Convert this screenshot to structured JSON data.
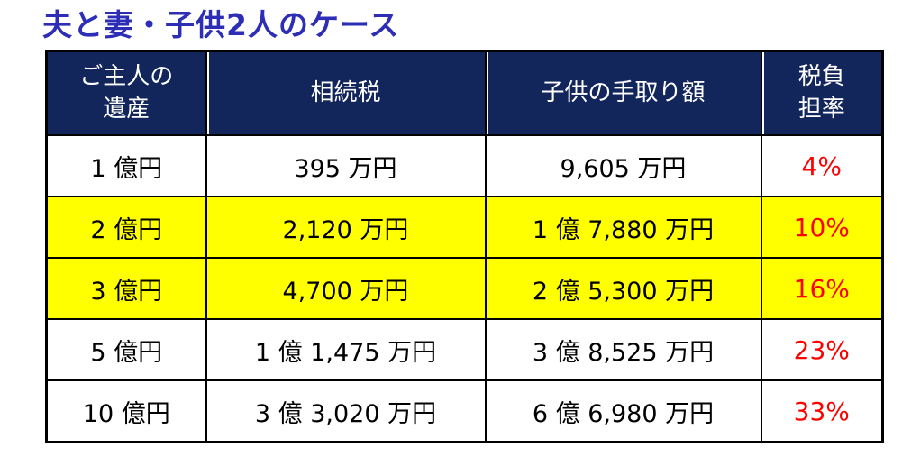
{
  "page": {
    "title": "夫と妻・子供2人のケース",
    "colors": {
      "title_blue": "#2d2db5",
      "header_navy": "#12265c",
      "highlight_yellow": "#ffff00",
      "rate_red": "#ff0000",
      "grid_black": "#000000"
    }
  },
  "table": {
    "headers": [
      {
        "id": "estate",
        "label": "ご主人の\n遺産"
      },
      {
        "id": "tax",
        "label": "相続税"
      },
      {
        "id": "net",
        "label": "子供の手取り額"
      },
      {
        "id": "rate",
        "label": "税負\n担率"
      }
    ],
    "rows": [
      {
        "estate": "1 億円",
        "tax": "395 万円",
        "net": "9,605 万円",
        "rate": "4%",
        "highlight": false
      },
      {
        "estate": "2 億円",
        "tax": "2,120 万円",
        "net": "1 億 7,880 万円",
        "rate": "10%",
        "highlight": true
      },
      {
        "estate": "3 億円",
        "tax": "4,700 万円",
        "net": "2 億 5,300 万円",
        "rate": "16%",
        "highlight": true
      },
      {
        "estate": "5 億円",
        "tax": "1 億 1,475 万円",
        "net": "3 億 8,525 万円",
        "rate": "23%",
        "highlight": false
      },
      {
        "estate": "10 億円",
        "tax": "3 億 3,020 万円",
        "net": "6 億 6,980 万円",
        "rate": "33%",
        "highlight": false
      }
    ]
  },
  "chart_data": {
    "type": "table",
    "title": "夫と妻・子供2人のケース",
    "columns": [
      "ご主人の遺産",
      "相続税",
      "子供の手取り額",
      "税負担率"
    ],
    "rows": [
      {
        "estate_oku_yen": 1,
        "inheritance_tax_man_yen": 395,
        "children_net_man_yen": 9605,
        "tax_burden_pct": 4
      },
      {
        "estate_oku_yen": 2,
        "inheritance_tax_man_yen": 2120,
        "children_net_man_yen": 17880,
        "tax_burden_pct": 10
      },
      {
        "estate_oku_yen": 3,
        "inheritance_tax_man_yen": 4700,
        "children_net_man_yen": 25300,
        "tax_burden_pct": 16
      },
      {
        "estate_oku_yen": 5,
        "inheritance_tax_man_yen": 11475,
        "children_net_man_yen": 38525,
        "tax_burden_pct": 23
      },
      {
        "estate_oku_yen": 10,
        "inheritance_tax_man_yen": 33020,
        "children_net_man_yen": 66980,
        "tax_burden_pct": 33
      }
    ],
    "highlighted_row_indexes": [
      1,
      2
    ]
  }
}
